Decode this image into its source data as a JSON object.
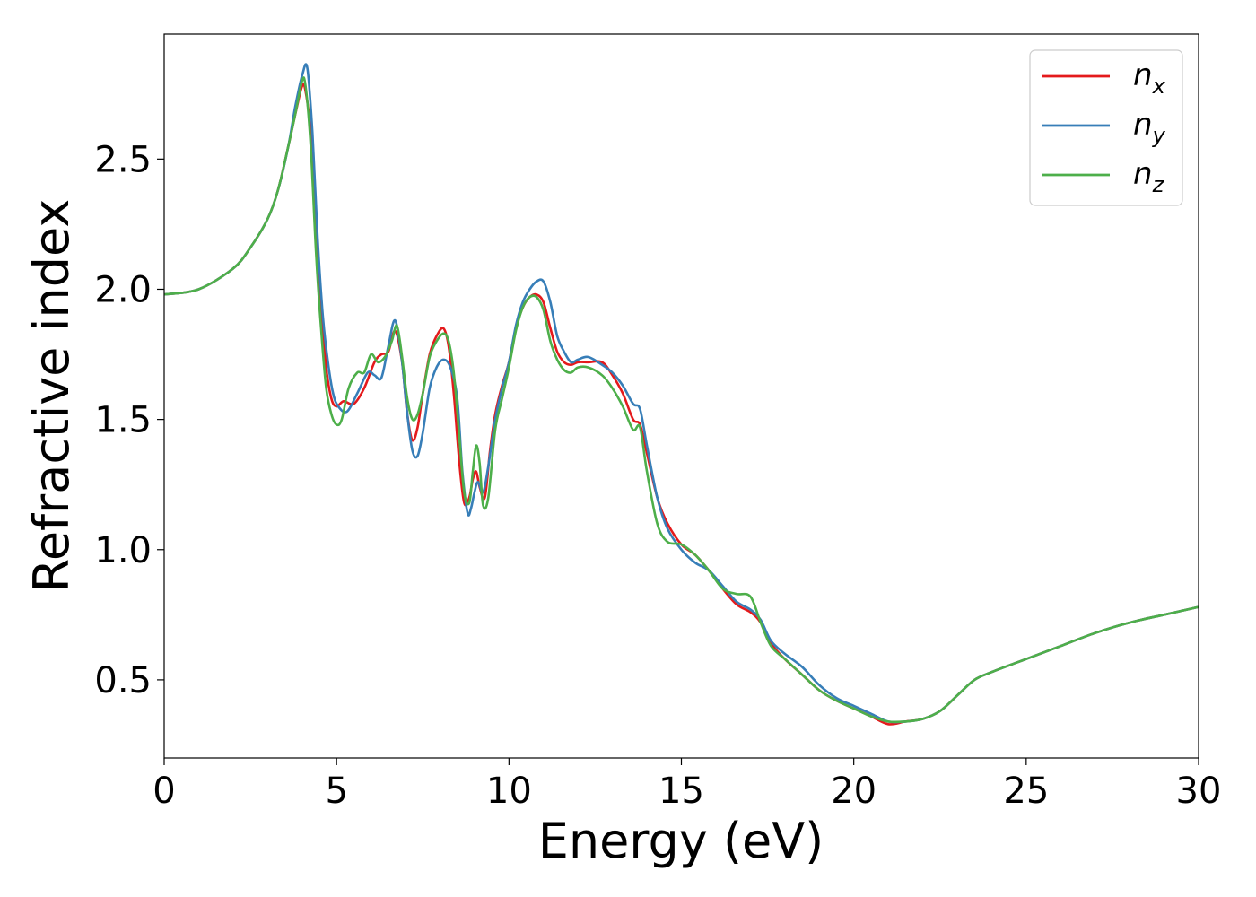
{
  "chart_data": {
    "type": "line",
    "title": "",
    "xlabel": "Energy (eV)",
    "ylabel": "Refractive index",
    "xlim": [
      0,
      30
    ],
    "ylim": [
      0.2,
      2.98
    ],
    "xticks": [
      0,
      5,
      10,
      15,
      20,
      25,
      30
    ],
    "xtick_labels": [
      "0",
      "5",
      "10",
      "15",
      "20",
      "25",
      "30"
    ],
    "yticks": [
      0.5,
      1.0,
      1.5,
      2.0,
      2.5
    ],
    "ytick_labels": [
      "0.5",
      "1.0",
      "1.5",
      "2.0",
      "2.5"
    ],
    "grid": false,
    "legend_position": "top-right",
    "series": [
      {
        "name": "n",
        "subscript": "x",
        "color": "#e41a1c",
        "x": [
          0,
          1,
          2,
          2.5,
          3,
          3.3,
          3.6,
          3.8,
          4.0,
          4.1,
          4.25,
          4.4,
          4.55,
          4.7,
          4.85,
          5.0,
          5.2,
          5.5,
          5.8,
          6.1,
          6.3,
          6.5,
          6.7,
          6.9,
          7.05,
          7.2,
          7.35,
          7.5,
          7.7,
          7.9,
          8.1,
          8.25,
          8.4,
          8.55,
          8.7,
          8.85,
          8.95,
          9.05,
          9.15,
          9.3,
          9.45,
          9.6,
          9.8,
          10.0,
          10.2,
          10.4,
          10.6,
          10.8,
          11.0,
          11.2,
          11.4,
          11.6,
          11.8,
          12.0,
          12.3,
          12.7,
          13.0,
          13.3,
          13.6,
          13.8,
          14.0,
          14.3,
          14.6,
          15.0,
          15.4,
          15.8,
          16.2,
          16.6,
          17.0,
          17.3,
          17.6,
          18.0,
          18.5,
          19.0,
          19.5,
          20.0,
          20.5,
          21.0,
          21.5,
          22.0,
          22.5,
          23.0,
          23.5,
          24.0,
          25.0,
          26.0,
          27.0,
          28.0,
          29.0,
          30.0
        ],
        "values": [
          1.98,
          2.0,
          2.08,
          2.16,
          2.27,
          2.38,
          2.55,
          2.67,
          2.78,
          2.76,
          2.6,
          2.25,
          1.95,
          1.7,
          1.58,
          1.55,
          1.57,
          1.56,
          1.62,
          1.72,
          1.75,
          1.76,
          1.84,
          1.72,
          1.52,
          1.42,
          1.47,
          1.6,
          1.75,
          1.82,
          1.85,
          1.78,
          1.6,
          1.35,
          1.18,
          1.2,
          1.27,
          1.3,
          1.24,
          1.2,
          1.38,
          1.52,
          1.63,
          1.72,
          1.85,
          1.93,
          1.97,
          1.98,
          1.95,
          1.85,
          1.76,
          1.72,
          1.71,
          1.72,
          1.72,
          1.72,
          1.67,
          1.6,
          1.5,
          1.48,
          1.37,
          1.2,
          1.1,
          1.02,
          0.98,
          0.92,
          0.85,
          0.79,
          0.76,
          0.72,
          0.64,
          0.58,
          0.52,
          0.46,
          0.42,
          0.39,
          0.36,
          0.33,
          0.34,
          0.35,
          0.38,
          0.44,
          0.5,
          0.53,
          0.58,
          0.63,
          0.68,
          0.72,
          0.75,
          0.78
        ]
      },
      {
        "name": "n",
        "subscript": "y",
        "color": "#377eb8",
        "x": [
          0,
          1,
          2,
          2.5,
          3,
          3.3,
          3.6,
          3.8,
          4.0,
          4.15,
          4.3,
          4.45,
          4.6,
          4.75,
          4.9,
          5.05,
          5.3,
          5.6,
          5.9,
          6.1,
          6.3,
          6.5,
          6.7,
          6.9,
          7.05,
          7.2,
          7.35,
          7.5,
          7.7,
          7.9,
          8.1,
          8.3,
          8.5,
          8.65,
          8.8,
          8.9,
          9.0,
          9.1,
          9.25,
          9.4,
          9.6,
          9.8,
          10.0,
          10.2,
          10.4,
          10.6,
          10.8,
          11.0,
          11.2,
          11.4,
          11.6,
          11.8,
          12.0,
          12.3,
          12.7,
          13.0,
          13.3,
          13.6,
          13.8,
          14.0,
          14.3,
          14.6,
          15.0,
          15.4,
          15.8,
          16.2,
          16.6,
          17.0,
          17.3,
          17.6,
          18.0,
          18.5,
          19.0,
          19.5,
          20.0,
          20.5,
          21.0,
          21.5,
          22.0,
          22.5,
          23.0,
          23.5,
          24.0,
          25.0,
          26.0,
          27.0,
          28.0,
          29.0,
          30.0
        ],
        "values": [
          1.98,
          2.0,
          2.08,
          2.16,
          2.27,
          2.38,
          2.55,
          2.7,
          2.82,
          2.85,
          2.6,
          2.2,
          1.9,
          1.72,
          1.6,
          1.55,
          1.53,
          1.6,
          1.68,
          1.67,
          1.66,
          1.78,
          1.88,
          1.72,
          1.52,
          1.38,
          1.36,
          1.45,
          1.62,
          1.7,
          1.73,
          1.7,
          1.58,
          1.3,
          1.14,
          1.16,
          1.22,
          1.26,
          1.22,
          1.32,
          1.5,
          1.62,
          1.72,
          1.86,
          1.95,
          2.0,
          2.03,
          2.03,
          1.95,
          1.82,
          1.76,
          1.72,
          1.73,
          1.74,
          1.71,
          1.68,
          1.63,
          1.56,
          1.54,
          1.4,
          1.2,
          1.08,
          1.0,
          0.95,
          0.92,
          0.86,
          0.8,
          0.77,
          0.73,
          0.65,
          0.6,
          0.55,
          0.48,
          0.43,
          0.4,
          0.37,
          0.34,
          0.34,
          0.35,
          0.38,
          0.44,
          0.5,
          0.53,
          0.58,
          0.63,
          0.68,
          0.72,
          0.75,
          0.78
        ]
      },
      {
        "name": "n",
        "subscript": "z",
        "color": "#4daf4a",
        "x": [
          0,
          1,
          2,
          2.5,
          3,
          3.3,
          3.6,
          3.8,
          4.0,
          4.1,
          4.25,
          4.4,
          4.55,
          4.7,
          4.85,
          5.0,
          5.15,
          5.35,
          5.6,
          5.8,
          6.0,
          6.2,
          6.4,
          6.6,
          6.75,
          6.9,
          7.05,
          7.2,
          7.35,
          7.5,
          7.7,
          7.9,
          8.1,
          8.25,
          8.4,
          8.55,
          8.7,
          8.85,
          8.95,
          9.05,
          9.15,
          9.25,
          9.4,
          9.6,
          9.8,
          10.0,
          10.2,
          10.4,
          10.6,
          10.8,
          11.0,
          11.2,
          11.4,
          11.6,
          11.8,
          12.0,
          12.3,
          12.7,
          13.0,
          13.3,
          13.6,
          13.8,
          14.0,
          14.3,
          14.6,
          15.0,
          15.4,
          15.8,
          16.2,
          16.6,
          17.0,
          17.3,
          17.6,
          18.0,
          18.5,
          19.0,
          19.5,
          20.0,
          20.5,
          21.0,
          21.5,
          22.0,
          22.5,
          23.0,
          23.5,
          24.0,
          25.0,
          26.0,
          27.0,
          28.0,
          29.0,
          30.0
        ],
        "values": [
          1.98,
          2.0,
          2.08,
          2.16,
          2.27,
          2.38,
          2.55,
          2.67,
          2.8,
          2.78,
          2.55,
          2.15,
          1.85,
          1.62,
          1.52,
          1.48,
          1.5,
          1.62,
          1.68,
          1.68,
          1.75,
          1.72,
          1.74,
          1.8,
          1.86,
          1.74,
          1.58,
          1.5,
          1.52,
          1.6,
          1.74,
          1.8,
          1.83,
          1.8,
          1.68,
          1.45,
          1.22,
          1.18,
          1.3,
          1.4,
          1.33,
          1.17,
          1.2,
          1.46,
          1.58,
          1.7,
          1.84,
          1.93,
          1.97,
          1.97,
          1.92,
          1.8,
          1.73,
          1.69,
          1.68,
          1.7,
          1.7,
          1.67,
          1.62,
          1.55,
          1.46,
          1.47,
          1.3,
          1.1,
          1.03,
          1.02,
          0.98,
          0.92,
          0.85,
          0.83,
          0.82,
          0.72,
          0.63,
          0.58,
          0.52,
          0.46,
          0.42,
          0.39,
          0.36,
          0.34,
          0.34,
          0.35,
          0.38,
          0.44,
          0.5,
          0.53,
          0.58,
          0.63,
          0.68,
          0.72,
          0.75,
          0.78
        ]
      }
    ]
  }
}
